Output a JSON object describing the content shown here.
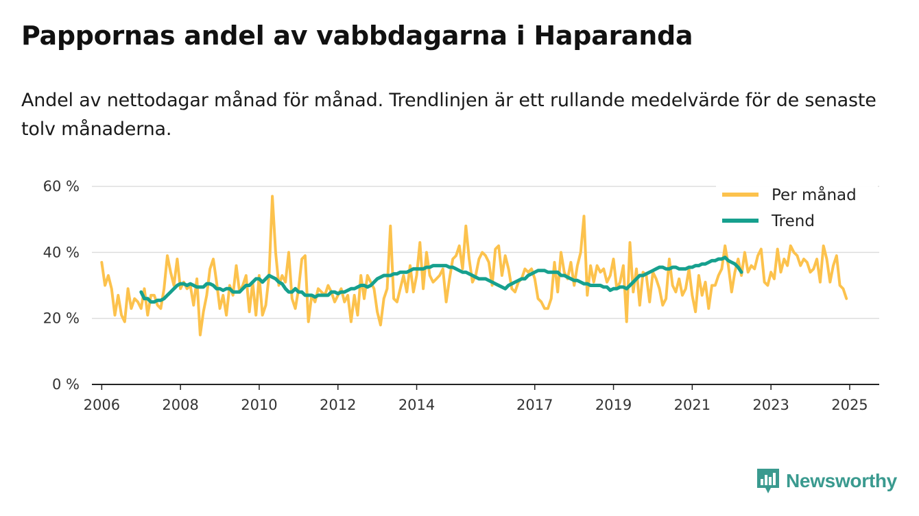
{
  "title": "Pappornas andel av vabbdagarna i Haparanda",
  "subtitle": "Andel av nettodagar månad för månad. Trendlinjen är ett rullande medelvärde för de senaste tolv månaderna.",
  "brand": {
    "name": "Newsworthy",
    "icon": "newsworthy-logo-icon"
  },
  "colors": {
    "monthly": "#fcc24d",
    "trend": "#16a08e",
    "grid": "#dddddd",
    "axis": "#222222",
    "brand": "#3a9a8f"
  },
  "chart_data": {
    "type": "line",
    "title": "Pappornas andel av vabbdagarna i Haparanda",
    "xlabel": "",
    "ylabel": "",
    "ylim": [
      0,
      60
    ],
    "yticks": [
      0,
      20,
      40,
      60
    ],
    "ytick_labels": [
      "0 %",
      "20 %",
      "40 %",
      "60 %"
    ],
    "xlim": [
      2005.75,
      2025.75
    ],
    "xticks": [
      2006,
      2008,
      2010,
      2012,
      2014,
      2017,
      2019,
      2021,
      2023,
      2025
    ],
    "xtick_labels": [
      "2006",
      "2008",
      "2010",
      "2012",
      "2014",
      "2017",
      "2019",
      "2021",
      "2023",
      "2025"
    ],
    "grid": true,
    "legend": {
      "position": "top-right",
      "entries": [
        "Per månad",
        "Trend"
      ]
    },
    "x_start": 2006,
    "x_step_months": 1,
    "series": [
      {
        "name": "Per månad",
        "color": "#fcc24d",
        "values": [
          37,
          30,
          33,
          29,
          21,
          27,
          21,
          19,
          29,
          23,
          26,
          25,
          23,
          29,
          21,
          27,
          27,
          24,
          23,
          29,
          39,
          34,
          30,
          38,
          29,
          31,
          29,
          30,
          24,
          32,
          15,
          22,
          27,
          35,
          38,
          31,
          23,
          27,
          21,
          30,
          27,
          36,
          28,
          30,
          33,
          22,
          31,
          21,
          33,
          21,
          24,
          33,
          57,
          40,
          30,
          33,
          31,
          40,
          26,
          23,
          29,
          38,
          39,
          19,
          27,
          25,
          29,
          28,
          27,
          30,
          28,
          25,
          27,
          29,
          25,
          27,
          19,
          27,
          21,
          33,
          26,
          33,
          31,
          29,
          22,
          18,
          26,
          29,
          48,
          26,
          25,
          29,
          33,
          28,
          36,
          28,
          33,
          43,
          29,
          40,
          33,
          31,
          32,
          33,
          35,
          25,
          32,
          38,
          39,
          42,
          35,
          48,
          38,
          31,
          33,
          38,
          40,
          39,
          37,
          30,
          41,
          42,
          33,
          39,
          35,
          29,
          28,
          31,
          32,
          35,
          34,
          35,
          32,
          26,
          25,
          23,
          23,
          26,
          37,
          28,
          40,
          34,
          32,
          37,
          30,
          36,
          40,
          51,
          27,
          36,
          31,
          36,
          34,
          35,
          31,
          33,
          38,
          29,
          31,
          36,
          19,
          43,
          28,
          35,
          24,
          34,
          33,
          25,
          34,
          32,
          29,
          24,
          26,
          38,
          30,
          28,
          32,
          27,
          29,
          35,
          27,
          22,
          33,
          27,
          31,
          23,
          30,
          30,
          33,
          35,
          42,
          36,
          28,
          34,
          38,
          33,
          40,
          34,
          36,
          35,
          39,
          41,
          31,
          30,
          34,
          32,
          41,
          34,
          38,
          36,
          42,
          40,
          39,
          36,
          38,
          37,
          34,
          35,
          38,
          31,
          42,
          38,
          31,
          36,
          39,
          30,
          29,
          26
        ]
      },
      {
        "name": "Trend",
        "color": "#16a08e",
        "start_index": 12,
        "values": [
          28,
          26,
          26,
          25,
          25,
          25.5,
          25.5,
          26,
          27,
          28,
          29,
          30,
          30.5,
          30.5,
          30,
          30.5,
          30,
          29.5,
          29.5,
          29.5,
          30.5,
          30.5,
          30,
          29,
          29,
          28.5,
          29,
          29,
          28,
          28,
          28,
          29,
          30,
          30,
          31,
          32,
          32,
          31,
          32,
          33,
          32.5,
          32,
          31,
          30.5,
          29,
          28,
          28,
          29,
          28,
          28,
          27,
          27,
          27,
          26.5,
          27,
          27,
          27,
          27,
          28,
          28,
          27.5,
          28,
          28,
          28.5,
          29,
          29,
          29.5,
          30,
          30,
          29.5,
          30,
          31,
          32,
          32.5,
          33,
          33,
          33,
          33.5,
          33.5,
          34,
          34,
          34,
          34.5,
          35,
          35,
          35,
          35,
          35.5,
          35.5,
          36,
          36,
          36,
          36,
          36,
          35.5,
          35.5,
          35,
          34.5,
          34,
          34,
          33.5,
          33,
          32.5,
          32,
          32,
          32,
          31.5,
          31,
          30.5,
          30,
          29.5,
          29,
          30,
          30.5,
          31,
          31.5,
          32,
          32,
          33,
          33.5,
          34,
          34.5,
          34.5,
          34.5,
          34,
          34,
          34,
          34,
          33,
          33,
          32.5,
          32,
          31.5,
          31.5,
          31,
          30.5,
          30.5,
          30,
          30,
          30,
          30,
          29.5,
          29.5,
          28.5,
          29,
          29,
          29.5,
          29.5,
          29,
          30,
          31,
          32,
          33,
          33,
          33.5,
          34,
          34.5,
          35,
          35.5,
          35.5,
          35,
          35,
          35.5,
          35.5,
          35,
          35,
          35,
          35.5,
          35.5,
          36,
          36,
          36.5,
          36.5,
          37,
          37.5,
          37.5,
          38,
          38,
          38.5,
          37.5,
          37,
          36.5,
          35.5,
          34
        ]
      }
    ]
  }
}
